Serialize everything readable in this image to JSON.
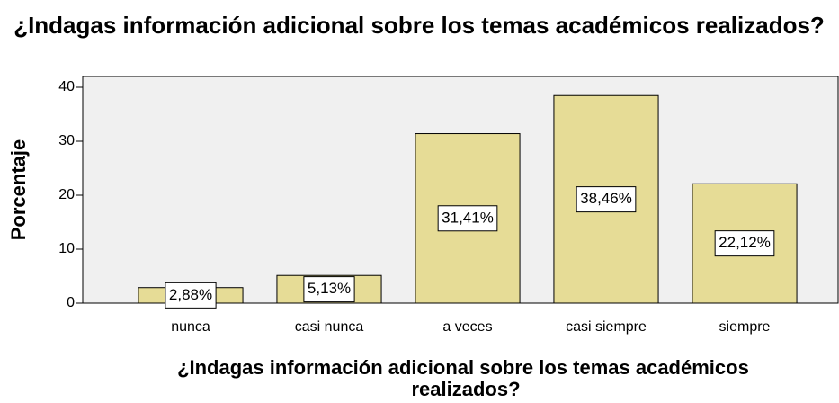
{
  "chart_data": {
    "type": "bar",
    "title": "¿Indagas información adicional sobre los temas académicos realizados?",
    "x_label": "¿Indagas información adicional sobre los temas académicos realizados?",
    "y_label": "Porcentaje",
    "categories": [
      "nunca",
      "casi nunca",
      "a veces",
      "casi siempre",
      "siempre"
    ],
    "values": [
      2.88,
      5.13,
      31.41,
      38.46,
      22.12
    ],
    "value_labels": [
      "2,88%",
      "5,13%",
      "31,41%",
      "38,46%",
      "22,12%"
    ],
    "color": "#e6dc96",
    "ylim": [
      0,
      42
    ],
    "yticks": [
      0,
      10,
      20,
      30,
      40
    ],
    "grid": false
  }
}
